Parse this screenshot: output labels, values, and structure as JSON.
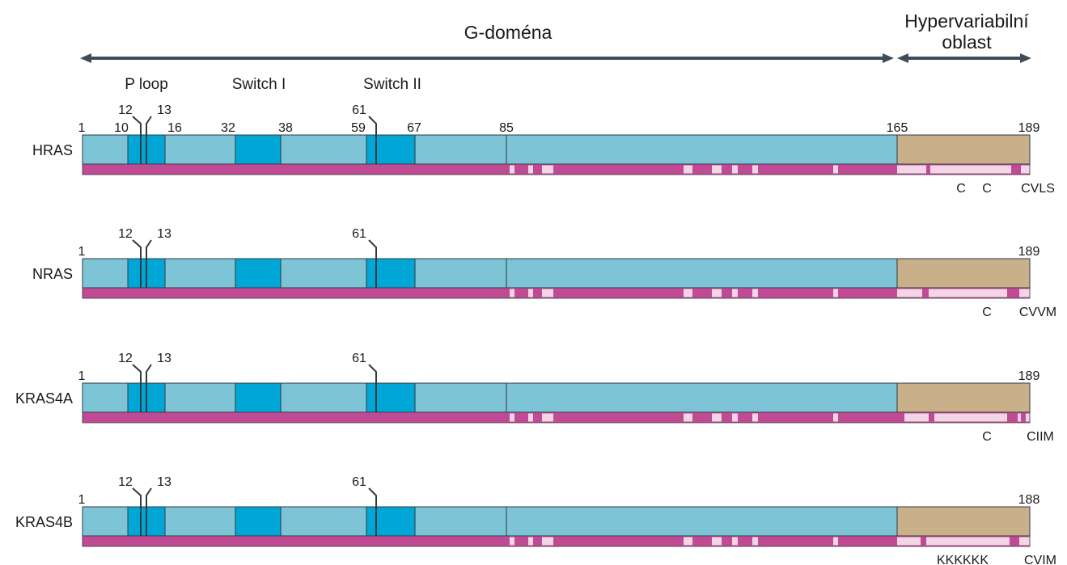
{
  "header": {
    "g_domain_label": "G-doména",
    "hvr_label_line1": "Hypervariabilní",
    "hvr_label_line2": "oblast"
  },
  "regions": {
    "p_loop": "P loop",
    "switch1": "Switch I",
    "switch2": "Switch II"
  },
  "colors": {
    "light_blue": "#7cc4d6",
    "dark_blue": "#00a7d6",
    "tan": "#c9b08b",
    "magenta": "#c14a94",
    "pink": "#f3d6e6",
    "arrow": "#3d4d59",
    "outline": "#2f3a40"
  },
  "proteins": [
    {
      "name": "HRAS",
      "start_label": "1",
      "end_label": "189",
      "position_labels": [
        "10",
        "16",
        "32",
        "38",
        "59",
        "67",
        "85",
        "165"
      ],
      "marker_labels": [
        "12",
        "13",
        "61"
      ],
      "motif_labels": [
        "C",
        "C",
        "CVLS"
      ]
    },
    {
      "name": "NRAS",
      "start_label": "1",
      "end_label": "189",
      "position_labels": [],
      "marker_labels": [
        "12",
        "13",
        "61"
      ],
      "motif_labels": [
        "C",
        "CVVM"
      ]
    },
    {
      "name": "KRAS4A",
      "start_label": "1",
      "end_label": "189",
      "position_labels": [],
      "marker_labels": [
        "12",
        "13",
        "61"
      ],
      "motif_labels": [
        "C",
        "CIIM"
      ]
    },
    {
      "name": "KRAS4B",
      "start_label": "1",
      "end_label": "188",
      "position_labels": [],
      "marker_labels": [
        "12",
        "13",
        "61"
      ],
      "motif_labels": [
        "KKKKKK",
        "CVIM"
      ]
    }
  ]
}
